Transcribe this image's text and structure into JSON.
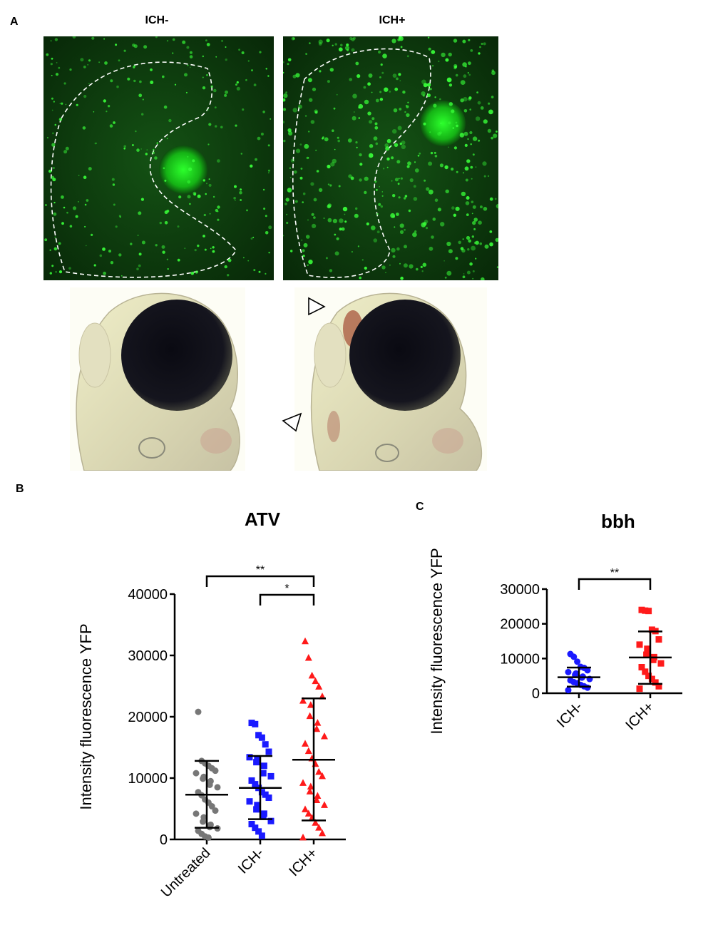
{
  "panel_a": {
    "label": "A",
    "col_left": "ICH-",
    "col_right": "ICH+"
  },
  "panel_b": {
    "label": "B"
  },
  "panel_c": {
    "label": "C"
  },
  "colors": {
    "untreated": "#777777",
    "ich_minus": "#1a1aff",
    "ich_plus": "#ff1a1a",
    "fluor_bg": "#0a3a0a",
    "fluor_dot": "#39ff39"
  },
  "chart_data": [
    {
      "type": "scatter",
      "title": "ATV",
      "ylabel": "Intensity fluorescence YFP",
      "ylim": [
        0,
        40000
      ],
      "yticks": [
        0,
        10000,
        20000,
        30000,
        40000
      ],
      "categories": [
        "Untreated",
        "ICH-",
        "ICH+"
      ],
      "series": [
        {
          "name": "Untreated",
          "marker": "circle",
          "values": [
            20800,
            12800,
            12400,
            12000,
            11600,
            11200,
            10800,
            10200,
            9900,
            9500,
            8900,
            8500,
            7700,
            7200,
            6500,
            6000,
            5400,
            4700,
            4200,
            3600,
            2900,
            2400,
            2000,
            1800,
            1400,
            900,
            500,
            300
          ],
          "mean": 7300,
          "sd_low": 1900,
          "sd_high": 12800
        },
        {
          "name": "ICH-",
          "marker": "square",
          "values": [
            19000,
            18800,
            17000,
            16600,
            15500,
            14300,
            13400,
            13100,
            12600,
            12000,
            10800,
            10300,
            9600,
            9000,
            8400,
            7700,
            7300,
            6800,
            6200,
            5600,
            4900,
            4200,
            3700,
            3000,
            2500,
            1900,
            1300,
            600
          ],
          "mean": 8400,
          "sd_low": 3300,
          "sd_high": 13600
        },
        {
          "name": "ICH+",
          "marker": "triangle",
          "values": [
            32300,
            29600,
            26700,
            25800,
            24900,
            23300,
            22600,
            21900,
            20100,
            19000,
            18000,
            16800,
            15600,
            14400,
            13200,
            12300,
            11000,
            10300,
            9200,
            8600,
            7800,
            7100,
            6400,
            5600,
            4900,
            4200,
            3500,
            2700,
            1900,
            1000,
            300
          ],
          "mean": 13000,
          "sd_low": 3100,
          "sd_high": 23000
        }
      ],
      "significance": [
        {
          "from": "Untreated",
          "to": "ICH+",
          "label": "**"
        },
        {
          "from": "ICH-",
          "to": "ICH+",
          "label": "*"
        }
      ]
    },
    {
      "type": "scatter",
      "title": "bbh",
      "ylabel": "Intensity fluorescence YFP",
      "ylim": [
        0,
        30000
      ],
      "yticks": [
        0,
        10000,
        20000,
        30000
      ],
      "categories": [
        "ICH-",
        "ICH+"
      ],
      "series": [
        {
          "name": "ICH-",
          "marker": "circle",
          "values": [
            11300,
            10500,
            9100,
            7600,
            7300,
            6600,
            6100,
            5700,
            5300,
            4800,
            4500,
            4100,
            3700,
            3200,
            2900,
            2400,
            2000,
            1600,
            900
          ],
          "mean": 4600,
          "sd_low": 1900,
          "sd_high": 7400
        },
        {
          "name": "ICH+",
          "marker": "square",
          "values": [
            24000,
            23800,
            23700,
            18300,
            17900,
            15500,
            14000,
            12800,
            11100,
            10400,
            9600,
            8600,
            7500,
            6200,
            5000,
            4100,
            3100,
            2000,
            1300
          ],
          "mean": 10300,
          "sd_low": 2700,
          "sd_high": 17800
        }
      ],
      "significance": [
        {
          "from": "ICH-",
          "to": "ICH+",
          "label": "**"
        }
      ]
    }
  ]
}
